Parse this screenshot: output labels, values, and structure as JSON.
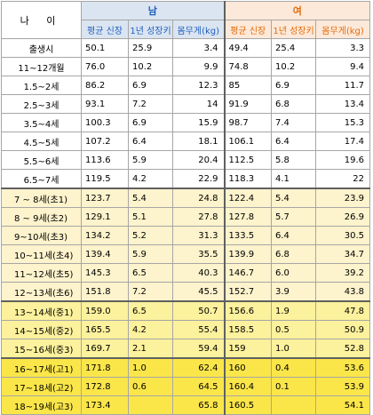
{
  "header": {
    "age_label": "나 이",
    "male_label": "남",
    "female_label": "여",
    "col_height": "평균 신장",
    "col_growth": "1년 성장키",
    "col_weight": "몸무게(kg)"
  },
  "rows": [
    {
      "age": "출생시",
      "m_h": "50.1",
      "m_g": "25.9",
      "m_w": "3.4",
      "f_h": "49.4",
      "f_g": "25.4",
      "f_w": "3.3"
    },
    {
      "age": "11~12개월",
      "m_h": "76.0",
      "m_g": "10.2",
      "m_w": "9.9",
      "f_h": "74.8",
      "f_g": "10.2",
      "f_w": "9.4"
    },
    {
      "age": "1.5~2세",
      "m_h": "86.2",
      "m_g": "6.9",
      "m_w": "12.3",
      "f_h": "85",
      "f_g": "6.9",
      "f_w": "11.7"
    },
    {
      "age": "2.5~3세",
      "m_h": "93.1",
      "m_g": "7.2",
      "m_w": "14",
      "f_h": "91.9",
      "f_g": "6.8",
      "f_w": "13.4"
    },
    {
      "age": "3.5~4세",
      "m_h": "100.3",
      "m_g": "6.9",
      "m_w": "15.9",
      "f_h": "98.7",
      "f_g": "7.4",
      "f_w": "15.3"
    },
    {
      "age": "4.5~5세",
      "m_h": "107.2",
      "m_g": "6.4",
      "m_w": "18.1",
      "f_h": "106.1",
      "f_g": "6.4",
      "f_w": "17.4"
    },
    {
      "age": "5.5~6세",
      "m_h": "113.6",
      "m_g": "5.9",
      "m_w": "20.4",
      "f_h": "112.5",
      "f_g": "5.8",
      "f_w": "19.6"
    },
    {
      "age": "6.5~7세",
      "m_h": "119.5",
      "m_g": "4.2",
      "m_w": "22.9",
      "f_h": "118.3",
      "f_g": "4.1",
      "f_w": "22"
    },
    {
      "age": "7 ~ 8세(초1)",
      "m_h": "123.7",
      "m_g": "5.4",
      "m_w": "24.8",
      "f_h": "122.4",
      "f_g": "5.4",
      "f_w": "23.9"
    },
    {
      "age": "8 ~ 9세(초2)",
      "m_h": "129.1",
      "m_g": "5.1",
      "m_w": "27.8",
      "f_h": "127.8",
      "f_g": "5.7",
      "f_w": "26.9"
    },
    {
      "age": "9~10세(초3)",
      "m_h": "134.2",
      "m_g": "5.2",
      "m_w": "31.3",
      "f_h": "133.5",
      "f_g": "6.4",
      "f_w": "30.5"
    },
    {
      "age": "10~11세(초4)",
      "m_h": "139.4",
      "m_g": "5.9",
      "m_w": "35.5",
      "f_h": "139.9",
      "f_g": "6.8",
      "f_w": "34.7"
    },
    {
      "age": "11~12세(초5)",
      "m_h": "145.3",
      "m_g": "6.5",
      "m_w": "40.3",
      "f_h": "146.7",
      "f_g": "6.0",
      "f_w": "39.2"
    },
    {
      "age": "12~13세(초6)",
      "m_h": "151.8",
      "m_g": "7.2",
      "m_w": "45.5",
      "f_h": "152.7",
      "f_g": "3.9",
      "f_w": "43.8"
    },
    {
      "age": "13~14세(중1)",
      "m_h": "159.0",
      "m_g": "6.5",
      "m_w": "50.7",
      "f_h": "156.6",
      "f_g": "1.9",
      "f_w": "47.8"
    },
    {
      "age": "14~15세(중2)",
      "m_h": "165.5",
      "m_g": "4.2",
      "m_w": "55.4",
      "f_h": "158.5",
      "f_g": "0.5",
      "f_w": "50.9"
    },
    {
      "age": "15~16세(중3)",
      "m_h": "169.7",
      "m_g": "2.1",
      "m_w": "59.4",
      "f_h": "159",
      "f_g": "1.0",
      "f_w": "52.8"
    },
    {
      "age": "16~17세(고1)",
      "m_h": "171.8",
      "m_g": "1.0",
      "m_w": "62.4",
      "f_h": "160",
      "f_g": "0.4",
      "f_w": "53.6"
    },
    {
      "age": "17~18세(고2)",
      "m_h": "172.8",
      "m_g": "0.6",
      "m_w": "64.5",
      "f_h": "160.4",
      "f_g": "0.1",
      "f_w": "53.9"
    },
    {
      "age": "18~19세(고3)",
      "m_h": "173.4",
      "m_g": "",
      "m_w": "65.8",
      "f_h": "160.5",
      "f_g": "",
      "f_w": "54.1"
    }
  ],
  "colors": {
    "male_header_bg": "#dbe5f1",
    "male_header_text": "#1f5fbf",
    "female_header_bg": "#fde9d9",
    "female_header_text": "#e26b0a",
    "elementary_bg": "#fdf3cc",
    "middle_bg": "#fcf19c",
    "high_bg": "#fbe64a"
  }
}
